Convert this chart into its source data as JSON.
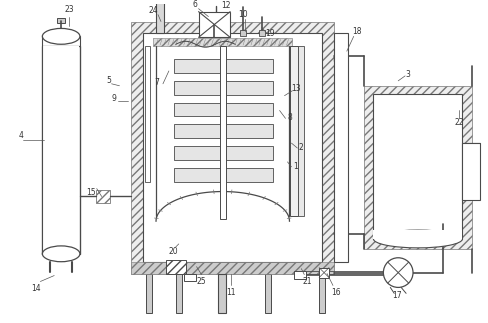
{
  "bg_color": "#ffffff",
  "lc": "#4a4a4a",
  "lc2": "#777777",
  "fig_w": 4.88,
  "fig_h": 3.23,
  "dpi": 100
}
